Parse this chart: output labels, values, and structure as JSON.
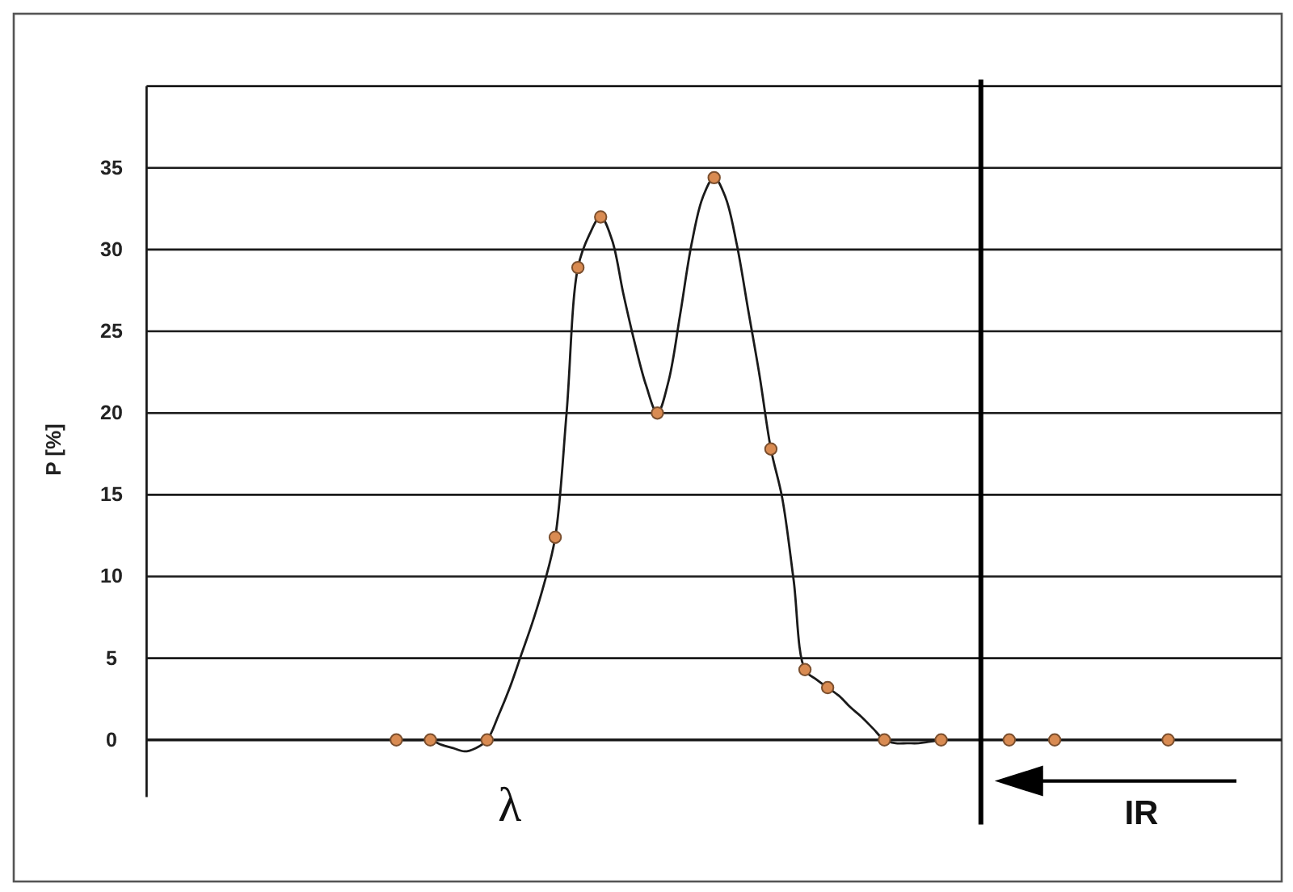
{
  "chart_data": {
    "type": "line",
    "xlabel": "λ",
    "ylabel": "P [%]",
    "annotations": [
      "IR"
    ],
    "categories": [
      null,
      null,
      null,
      null,
      null,
      null,
      null,
      null,
      null,
      null,
      null,
      null,
      null,
      null,
      null,
      null,
      null,
      null,
      null,
      null,
      null,
      null,
      null,
      null,
      null,
      null,
      null,
      null,
      null,
      null,
      null,
      null,
      null,
      null,
      null,
      null,
      null,
      null,
      null,
      null,
      null,
      null,
      null,
      null,
      null,
      null,
      null,
      null,
      null,
      null,
      null,
      null,
      null,
      null,
      null,
      null,
      null,
      null,
      null,
      null,
      null,
      null,
      null,
      null,
      null,
      null,
      null,
      null,
      null,
      null,
      null,
      null,
      null,
      null,
      null,
      null,
      null,
      null,
      null,
      null,
      null,
      null,
      null,
      null,
      null,
      null,
      null,
      null,
      null,
      null,
      null,
      null,
      null,
      null,
      null,
      null,
      null,
      null,
      null,
      null,
      null
    ],
    "ylim": [
      -3.5,
      40
    ],
    "yticks": [
      0,
      5,
      10,
      15,
      20,
      25,
      30,
      35,
      {
        "value": 40,
        "label": null
      }
    ],
    "tick_labels": "y",
    "grid": "y",
    "marker": "circle",
    "line_style": "solid",
    "series": [
      {
        "marker": "none",
        "color": "#1a1a1a",
        "values": [
          null,
          null,
          null,
          null,
          null,
          null,
          null,
          null,
          null,
          null,
          null,
          null,
          null,
          null,
          null,
          null,
          null,
          null,
          null,
          null,
          null,
          null,
          0,
          0,
          0,
          0,
          -0.3,
          -0.5,
          -0.7,
          -0.5,
          0,
          1.5,
          3.2,
          5.2,
          7.2,
          9.5,
          12.4,
          20,
          28.9,
          30.9,
          32,
          30.6,
          27.3,
          24.3,
          21.7,
          20,
          22,
          26,
          30.3,
          33.2,
          34.4,
          33.2,
          30.3,
          26.3,
          22.3,
          17.8,
          14.8,
          9.8,
          4.3,
          3.7,
          3.2,
          2.7,
          2,
          1.4,
          0.7,
          0,
          -0.2,
          -0.2,
          -0.2,
          -0.1,
          0,
          null,
          null,
          null,
          null,
          null,
          null,
          null,
          null,
          null,
          null,
          null,
          null,
          null,
          null,
          null,
          null,
          null,
          null,
          null,
          null,
          null,
          null,
          null,
          null,
          null,
          null,
          null,
          null,
          null,
          null
        ]
      },
      {
        "type": "scatter",
        "color": "#d98b52",
        "values": [
          null,
          null,
          null,
          null,
          null,
          null,
          null,
          null,
          null,
          null,
          null,
          null,
          null,
          null,
          null,
          null,
          null,
          null,
          null,
          null,
          null,
          null,
          0,
          null,
          null,
          0,
          null,
          null,
          null,
          null,
          0,
          null,
          null,
          null,
          null,
          null,
          12.4,
          null,
          28.9,
          null,
          32,
          null,
          null,
          null,
          null,
          20,
          null,
          null,
          null,
          null,
          34.4,
          null,
          null,
          null,
          null,
          17.8,
          null,
          null,
          4.3,
          null,
          3.2,
          null,
          null,
          null,
          null,
          0,
          null,
          null,
          null,
          null,
          0,
          null,
          null,
          null,
          null,
          null,
          0,
          null,
          null,
          null,
          0,
          null,
          null,
          null,
          null,
          null,
          null,
          null,
          null,
          null,
          0,
          null,
          null,
          null,
          null,
          null,
          null,
          null,
          null,
          null,
          null
        ]
      }
    ]
  }
}
